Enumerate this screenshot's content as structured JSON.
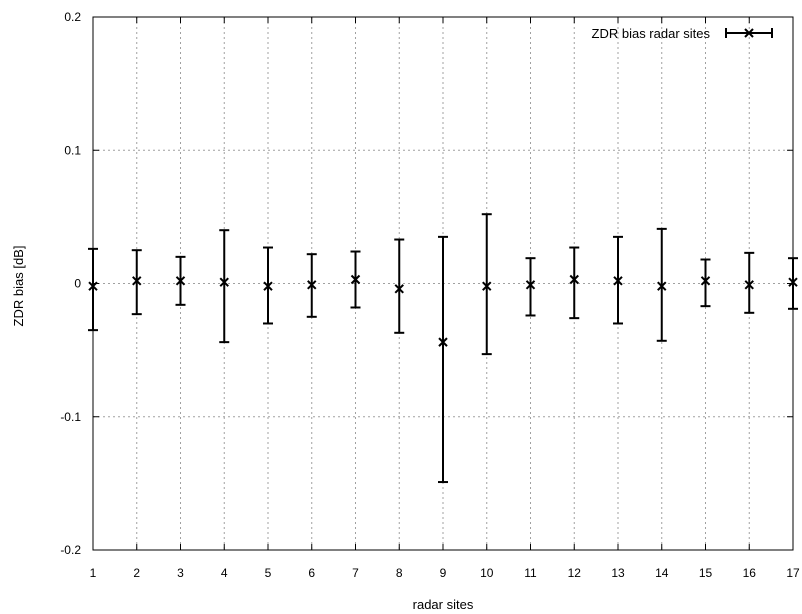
{
  "chart_data": {
    "type": "scatter",
    "title": "",
    "xlabel": "radar sites",
    "ylabel": "ZDR bias [dB]",
    "xlim": [
      1,
      17
    ],
    "ylim": [
      -0.2,
      0.2
    ],
    "x_ticks": [
      "1",
      "2",
      "3",
      "4",
      "5",
      "6",
      "7",
      "8",
      "9",
      "10",
      "11",
      "12",
      "13",
      "14",
      "15",
      "16",
      "17"
    ],
    "y_ticks": [
      {
        "value": 0.2,
        "label": "0.2"
      },
      {
        "value": 0.1,
        "label": "0.1"
      },
      {
        "value": 0,
        "label": "0"
      },
      {
        "value": -0.1,
        "label": "-0.1"
      },
      {
        "value": -0.2,
        "label": "-0.2"
      }
    ],
    "grid": true,
    "legend_position": "top-right",
    "series": [
      {
        "name": "ZDR bias radar sites",
        "marker": "x",
        "color": "#000000",
        "points": [
          {
            "x": 1,
            "y": -0.002,
            "low": -0.035,
            "high": 0.026
          },
          {
            "x": 2,
            "y": 0.002,
            "low": -0.023,
            "high": 0.025
          },
          {
            "x": 3,
            "y": 0.002,
            "low": -0.016,
            "high": 0.02
          },
          {
            "x": 4,
            "y": 0.001,
            "low": -0.044,
            "high": 0.04
          },
          {
            "x": 5,
            "y": -0.002,
            "low": -0.03,
            "high": 0.027
          },
          {
            "x": 6,
            "y": -0.001,
            "low": -0.025,
            "high": 0.022
          },
          {
            "x": 7,
            "y": 0.003,
            "low": -0.018,
            "high": 0.024
          },
          {
            "x": 8,
            "y": -0.004,
            "low": -0.037,
            "high": 0.033
          },
          {
            "x": 9,
            "y": -0.044,
            "low": -0.149,
            "high": 0.035
          },
          {
            "x": 10,
            "y": -0.002,
            "low": -0.053,
            "high": 0.052
          },
          {
            "x": 11,
            "y": -0.001,
            "low": -0.024,
            "high": 0.019
          },
          {
            "x": 12,
            "y": 0.003,
            "low": -0.026,
            "high": 0.027
          },
          {
            "x": 13,
            "y": 0.002,
            "low": -0.03,
            "high": 0.035
          },
          {
            "x": 14,
            "y": -0.002,
            "low": -0.043,
            "high": 0.041
          },
          {
            "x": 15,
            "y": 0.002,
            "low": -0.017,
            "high": 0.018
          },
          {
            "x": 16,
            "y": -0.001,
            "low": -0.022,
            "high": 0.023
          },
          {
            "x": 17,
            "y": 0.001,
            "low": -0.019,
            "high": 0.019
          }
        ]
      }
    ]
  }
}
